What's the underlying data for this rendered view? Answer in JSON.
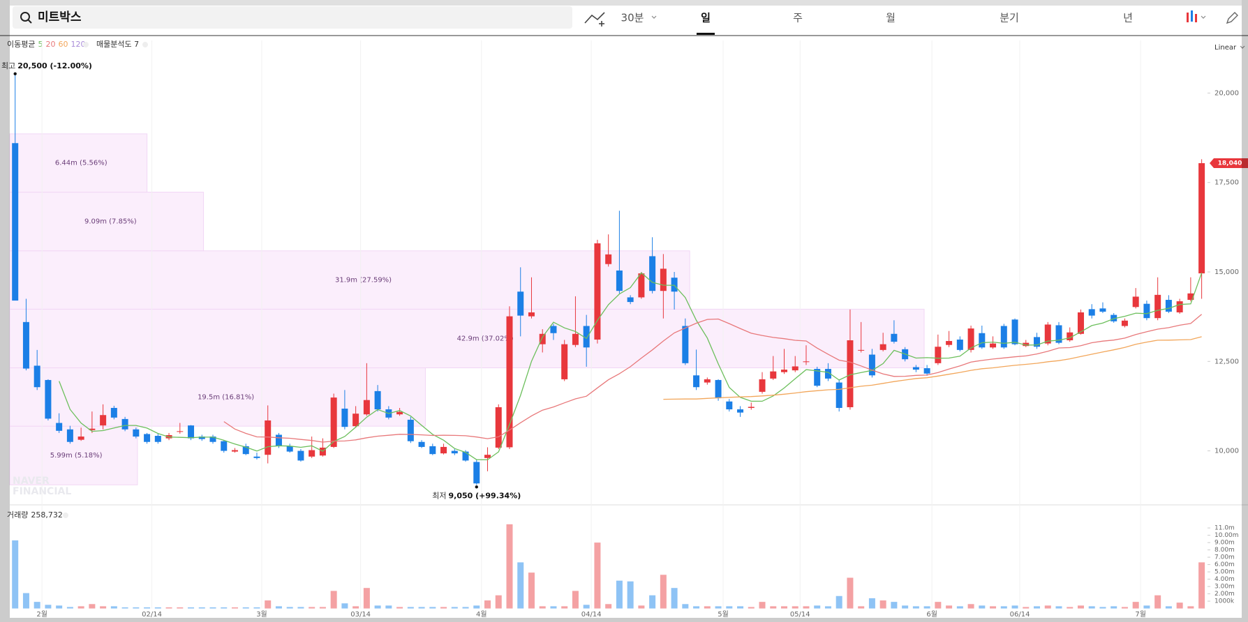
{
  "header": {
    "search": "미트박스",
    "tabs": [
      "30분",
      "일",
      "주",
      "월",
      "분기",
      "년"
    ],
    "selected_tab": 1
  },
  "chart_data": {
    "type": "candlestick",
    "categories": [
      null,
      null,
      "2월",
      null,
      null,
      null,
      null,
      null,
      null,
      null,
      null,
      null,
      "02/14",
      null,
      null,
      null,
      null,
      null,
      null,
      null,
      null,
      null,
      "3월",
      null,
      null,
      null,
      null,
      null,
      null,
      null,
      null,
      "03/14",
      null,
      null,
      null,
      null,
      null,
      null,
      null,
      null,
      null,
      null,
      "4월",
      null,
      null,
      null,
      null,
      null,
      null,
      null,
      null,
      null,
      "04/14",
      null,
      null,
      null,
      null,
      null,
      null,
      null,
      null,
      null,
      null,
      null,
      "5월",
      null,
      null,
      null,
      null,
      null,
      null,
      "05/14",
      null,
      null,
      null,
      null,
      null,
      null,
      null,
      null,
      null,
      null,
      null,
      "6월",
      null,
      null,
      null,
      null,
      null,
      null,
      null,
      "06/14",
      null,
      null,
      null,
      null,
      null,
      null,
      null,
      null,
      null,
      null,
      "7월",
      null,
      null,
      null,
      null,
      null,
      null
    ],
    "open": [
      18600,
      13600,
      12380,
      11980,
      10780,
      10600,
      10310,
      10580,
      10710,
      11200,
      10890,
      10600,
      10470,
      10420,
      10350,
      10530,
      10710,
      10400,
      10400,
      10270,
      9980,
      10130,
      9840,
      9890,
      10450,
      10130,
      10000,
      9840,
      9870,
      10110,
      11180,
      10690,
      11020,
      11670,
      11160,
      11020,
      10870,
      10250,
      10130,
      9930,
      10000,
      9980,
      9690,
      9800,
      10090,
      10100,
      14450,
      13760,
      12980,
      13490,
      12000,
      12960,
      13490,
      13110,
      15220,
      15040,
      14290,
      14290,
      15440,
      14470,
      14840,
      13490,
      12110,
      11910,
      11980,
      11380,
      11160,
      11200,
      11650,
      12020,
      12200,
      12250,
      12480,
      12290,
      12290,
      11910,
      11220,
      12800,
      12690,
      12820,
      13270,
      12840,
      12340,
      12310,
      12450,
      12960,
      13110,
      12820,
      13290,
      12890,
      13490,
      13670,
      12930,
      13180,
      13000,
      13510,
      13090,
      13270,
      13960,
      13980,
      13800,
      13490,
      14020,
      14110,
      13710,
      14220,
      13870,
      14220,
      14960
    ],
    "high": [
      20500,
      14250,
      12820,
      12000,
      11050,
      10700,
      10650,
      11100,
      11300,
      11260,
      10950,
      10650,
      10500,
      10480,
      10500,
      10780,
      10720,
      10450,
      10450,
      10300,
      10080,
      10200,
      9950,
      11270,
      10500,
      10200,
      10050,
      10400,
      10350,
      11600,
      11700,
      11250,
      12450,
      11840,
      11250,
      11200,
      10950,
      10300,
      10200,
      10200,
      10050,
      10020,
      9750,
      10100,
      11300,
      14040,
      15130,
      14850,
      13400,
      13550,
      13100,
      14320,
      13800,
      15900,
      16050,
      16710,
      14350,
      15000,
      15970,
      15500,
      15000,
      13700,
      12830,
      12050,
      12000,
      11450,
      11250,
      11350,
      12200,
      12650,
      12850,
      12650,
      12950,
      12350,
      12450,
      12000,
      13950,
      13600,
      12850,
      13300,
      13650,
      12900,
      12400,
      12400,
      13250,
      13350,
      13200,
      13500,
      13500,
      13200,
      13550,
      13700,
      13100,
      13300,
      13600,
      13600,
      13450,
      13950,
      14100,
      14150,
      13850,
      13700,
      14550,
      14200,
      14850,
      14350,
      14250,
      14850,
      18150
    ],
    "low": [
      14200,
      12250,
      11700,
      10850,
      10500,
      10200,
      10280,
      10500,
      10600,
      10880,
      10550,
      10350,
      10200,
      10200,
      10300,
      10480,
      10300,
      10280,
      10200,
      9950,
      9950,
      9880,
      9760,
      9650,
      10080,
      9950,
      9700,
      9800,
      9840,
      10080,
      10600,
      10650,
      10980,
      11100,
      10880,
      10980,
      10220,
      10080,
      9880,
      9900,
      9880,
      9700,
      9050,
      9430,
      10050,
      10050,
      13200,
      13700,
      12750,
      13100,
      11950,
      12900,
      12350,
      13000,
      15150,
      14400,
      14100,
      14250,
      14400,
      13700,
      13950,
      12400,
      11700,
      11850,
      11400,
      11100,
      10950,
      11150,
      11600,
      11980,
      12150,
      12200,
      12400,
      11780,
      11950,
      11100,
      11150,
      12750,
      12050,
      12780,
      13000,
      12500,
      12200,
      12100,
      12400,
      12900,
      12780,
      12750,
      12850,
      12850,
      12850,
      12950,
      12900,
      12850,
      12950,
      12980,
      13050,
      13250,
      13700,
      13850,
      13580,
      13450,
      13980,
      13650,
      13650,
      13850,
      13830,
      14180,
      14250
    ],
    "close": [
      14200,
      12300,
      11780,
      10900,
      10560,
      10250,
      10400,
      10620,
      11000,
      10930,
      10600,
      10400,
      10250,
      10250,
      10440,
      10550,
      10350,
      10330,
      10250,
      10000,
      10020,
      9910,
      9800,
      10850,
      10130,
      9980,
      9730,
      10020,
      10090,
      11490,
      10670,
      11040,
      11420,
      11160,
      10930,
      11090,
      10270,
      10110,
      9910,
      10110,
      9930,
      9730,
      9090,
      9890,
      11220,
      13760,
      13780,
      13870,
      13270,
      13290,
      12980,
      13270,
      12890,
      15800,
      15490,
      14470,
      14160,
      14960,
      14470,
      15090,
      14450,
      12450,
      11780,
      12000,
      11470,
      11160,
      11070,
      11230,
      12000,
      12220,
      12270,
      12360,
      12500,
      11820,
      12020,
      11200,
      13090,
      12820,
      12110,
      12980,
      13050,
      12560,
      12270,
      12160,
      12910,
      13070,
      12820,
      13420,
      12890,
      13000,
      12890,
      12980,
      13020,
      12910,
      13530,
      13020,
      13310,
      13870,
      13780,
      13890,
      13620,
      13640,
      14310,
      13710,
      14360,
      13890,
      14180,
      14400,
      18040
    ],
    "up_color": "#e8373c",
    "down_color": "#1b7fe6",
    "ylim": [
      8530,
      21470
    ],
    "yticks": [
      {
        "value": 10000,
        "label": "10,000"
      },
      {
        "value": 12500,
        "label": "12,500"
      },
      {
        "value": 15000,
        "label": "15,000"
      },
      {
        "value": 17500,
        "label": "17,500"
      },
      {
        "value": 20000,
        "label": "20,000"
      }
    ],
    "scale": "Linear",
    "grid": true,
    "moving_averages": {
      "title": "이동평균",
      "series": [
        {
          "name": "5",
          "period": 5,
          "color": "#6cbf5c"
        },
        {
          "name": "20",
          "period": 20,
          "color": "#e8787a"
        },
        {
          "name": "60",
          "period": 60,
          "color": "#f2a65a"
        },
        {
          "name": "120",
          "period": 120,
          "color": "#a98bd8"
        }
      ]
    },
    "annotations": {
      "high": {
        "prefix": "최고",
        "value": 20500,
        "label": "20,500 (-12.00%)"
      },
      "low": {
        "prefix": "최저",
        "value": 9050,
        "label": "9,050 (+99.34%)"
      }
    },
    "last_price": {
      "value": 18040,
      "label": "18,040"
    },
    "volume_profile": {
      "title": "매물분석도 7",
      "color": "#fbeefc",
      "border": "#f1d6f5",
      "bands": [
        {
          "low": 9050,
          "high": 10690,
          "value": 5990000,
          "label": "5.99m (5.18%)"
        },
        {
          "low": 10690,
          "high": 12320,
          "value": 19500000,
          "label": "19.5m (16.81%)"
        },
        {
          "low": 12320,
          "high": 13960,
          "value": 42900000,
          "label": "42.9m (37.02%)"
        },
        {
          "low": 13960,
          "high": 15590,
          "value": 31900000,
          "label": "31.9m (27.59%)"
        },
        {
          "low": 15590,
          "high": 17230,
          "value": 9090000,
          "label": "9.09m (7.85%)"
        },
        {
          "low": 17230,
          "high": 18860,
          "value": 6440000,
          "label": "6.44m (5.56%)"
        }
      ]
    },
    "volume": {
      "title": "거래량",
      "total_label": "258,732",
      "up_color": "#f4a1a3",
      "down_color": "#8ec3f5",
      "values": [
        9300000,
        2100000,
        900000,
        500000,
        400000,
        200000,
        300000,
        600000,
        300000,
        300000,
        150000,
        150000,
        150000,
        150000,
        150000,
        150000,
        150000,
        150000,
        150000,
        150000,
        150000,
        150000,
        150000,
        1100000,
        300000,
        200000,
        200000,
        200000,
        200000,
        2400000,
        700000,
        300000,
        2800000,
        400000,
        400000,
        200000,
        200000,
        200000,
        200000,
        200000,
        200000,
        200000,
        400000,
        1100000,
        1800000,
        11500000,
        6300000,
        4900000,
        300000,
        300000,
        300000,
        2400000,
        500000,
        9000000,
        600000,
        3800000,
        3700000,
        400000,
        1800000,
        4600000,
        2800000,
        600000,
        300000,
        300000,
        300000,
        300000,
        300000,
        200000,
        900000,
        300000,
        300000,
        300000,
        300000,
        400000,
        300000,
        1700000,
        4200000,
        300000,
        1400000,
        1100000,
        900000,
        400000,
        300000,
        300000,
        900000,
        400000,
        300000,
        600000,
        400000,
        300000,
        300000,
        400000,
        200000,
        300000,
        400000,
        300000,
        200000,
        400000,
        300000,
        200000,
        300000,
        200000,
        900000,
        400000,
        1800000,
        300000,
        800000,
        300000,
        6300000
      ],
      "ylim": [
        0,
        12200000
      ],
      "yticks": [
        {
          "value": 1000000,
          "label": "1000k"
        },
        {
          "value": 2000000,
          "label": "2.00m"
        },
        {
          "value": 3000000,
          "label": "3.00m"
        },
        {
          "value": 4000000,
          "label": "4.00m"
        },
        {
          "value": 5000000,
          "label": "5.00m"
        },
        {
          "value": 6000000,
          "label": "6.00m"
        },
        {
          "value": 7000000,
          "label": "7.00m"
        },
        {
          "value": 8000000,
          "label": "8.00m"
        },
        {
          "value": 9000000,
          "label": "9.00m"
        },
        {
          "value": 10000000,
          "label": "10.00m"
        },
        {
          "value": 11000000,
          "label": "11.0m"
        }
      ]
    }
  },
  "watermark": [
    "NAVER",
    "FINANCIAL"
  ]
}
